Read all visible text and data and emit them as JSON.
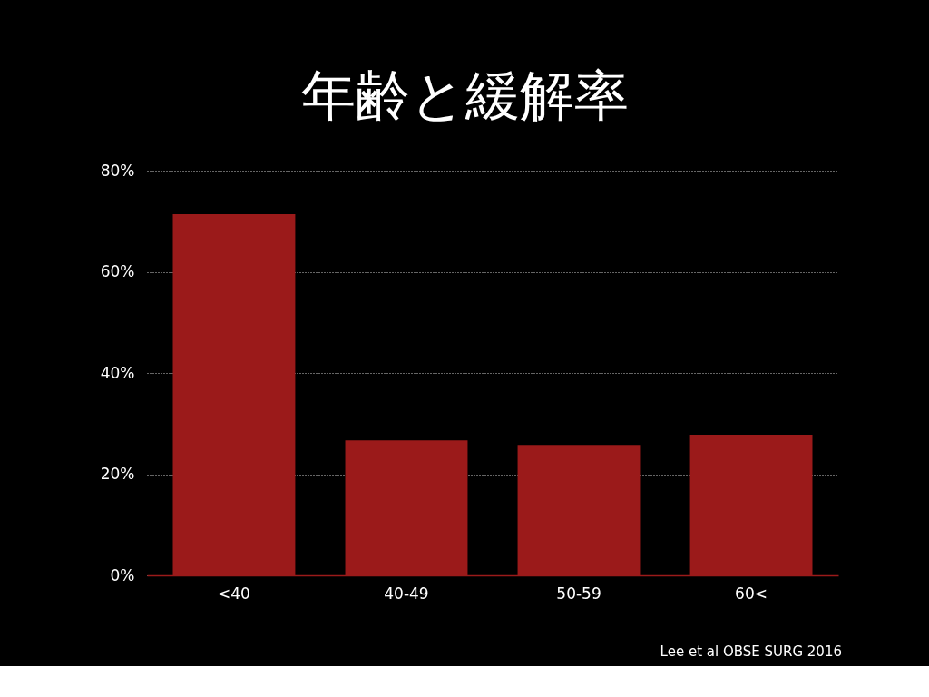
{
  "chart_data": {
    "type": "bar",
    "title": "年齢と緩解率",
    "categories": [
      "<40",
      "40-49",
      "50-59",
      "60<"
    ],
    "values": [
      71.4,
      26.7,
      25.8,
      27.8
    ],
    "color": "#9b1a1a",
    "ylim": [
      0,
      80
    ],
    "yticks": [
      {
        "value": 0,
        "label": "0%"
      },
      {
        "value": 20,
        "label": "20%"
      },
      {
        "value": 40,
        "label": "40%"
      },
      {
        "value": 60,
        "label": "60%"
      },
      {
        "value": 80,
        "label": "80%"
      }
    ],
    "grid": "y",
    "annotations": [
      "Lee et al OBSE SURG 2016"
    ]
  }
}
